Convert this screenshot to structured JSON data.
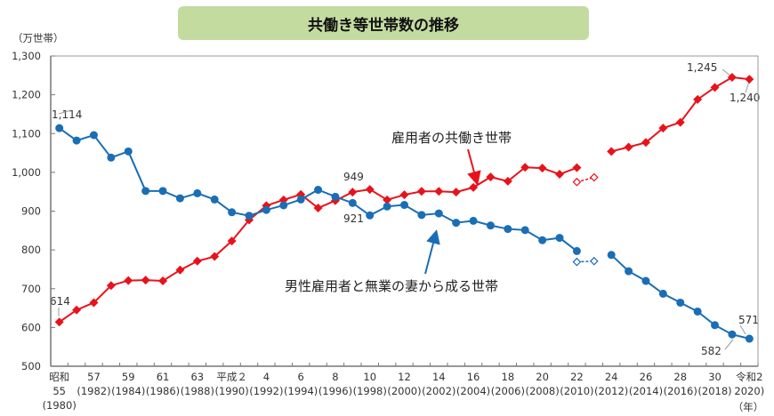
{
  "chart_data": {
    "type": "line",
    "title": "共働き等世帯数の推移",
    "ylabel": "（万世帯）",
    "xlabel": "（年）",
    "ylim": [
      500,
      1300
    ],
    "yticks": [
      "500",
      "600",
      "700",
      "800",
      "900",
      "1,000",
      "1,100",
      "1,200",
      "1,300"
    ],
    "grid": false,
    "x": [
      1980,
      1981,
      1982,
      1983,
      1984,
      1985,
      1986,
      1987,
      1988,
      1989,
      1990,
      1991,
      1992,
      1993,
      1994,
      1995,
      1996,
      1997,
      1998,
      1999,
      2000,
      2001,
      2002,
      2003,
      2004,
      2005,
      2006,
      2007,
      2008,
      2009,
      2010,
      2011,
      2012,
      2013,
      2014,
      2015,
      2016,
      2017,
      2018,
      2019,
      2020
    ],
    "xtick_labels": [
      {
        "era": "昭和",
        "year": "55",
        "west": "(1980)"
      },
      {
        "year": "57",
        "west": "(1982)"
      },
      {
        "year": "59",
        "west": "(1984)"
      },
      {
        "year": "61",
        "west": "(1986)"
      },
      {
        "year": "63",
        "west": "(1988)"
      },
      {
        "year": "平成２",
        "west": "(1990)"
      },
      {
        "year": "4",
        "west": "(1992)"
      },
      {
        "year": "6",
        "west": "(1994)"
      },
      {
        "year": "8",
        "west": "(1996)"
      },
      {
        "year": "10",
        "west": "(1998)"
      },
      {
        "year": "12",
        "west": "(2000)"
      },
      {
        "year": "14",
        "west": "(2002)"
      },
      {
        "year": "16",
        "west": "(2004)"
      },
      {
        "year": "18",
        "west": "(2006)"
      },
      {
        "year": "20",
        "west": "(2008)"
      },
      {
        "year": "22",
        "west": "(2010)"
      },
      {
        "year": "24",
        "west": "(2012)"
      },
      {
        "year": "26",
        "west": "(2014)"
      },
      {
        "year": "28",
        "west": "(2016)"
      },
      {
        "year": "30",
        "west": "(2018)"
      },
      {
        "year": "令和2",
        "west": "2020)"
      }
    ],
    "series": [
      {
        "name": "雇用者の共働き世帯",
        "color": "#e8121b",
        "marker": "diamond",
        "values": [
          614,
          645,
          664,
          708,
          721,
          722,
          720,
          748,
          771,
          783,
          823,
          877,
          914,
          929,
          943,
          908,
          927,
          949,
          956,
          929,
          942,
          951,
          951,
          949,
          961,
          988,
          977,
          1013,
          1011,
          995,
          1012,
          null,
          1054,
          1065,
          1077,
          1114,
          1129,
          1188,
          1219,
          1245,
          1240
        ],
        "dashed_points": {
          "x": [
            2010,
            2011
          ],
          "values": [
            975,
            987
          ]
        }
      },
      {
        "name": "男性雇用者と無業の妻から成る世帯",
        "color": "#1a6eb5",
        "marker": "circle",
        "values": [
          1114,
          1082,
          1096,
          1038,
          1054,
          952,
          952,
          933,
          946,
          930,
          897,
          888,
          903,
          915,
          930,
          955,
          937,
          921,
          889,
          912,
          916,
          890,
          894,
          870,
          875,
          863,
          854,
          851,
          825,
          831,
          797,
          null,
          787,
          745,
          720,
          687,
          664,
          641,
          606,
          582,
          571
        ],
        "dashed_points": {
          "x": [
            2010,
            2011
          ],
          "values": [
            769,
            771
          ]
        }
      }
    ],
    "data_labels": {
      "red_1980": "614",
      "blue_1980": "1,114",
      "red_1997": "949",
      "blue_1997": "921",
      "red_2019": "1,245",
      "red_2020": "1,240",
      "blue_2019": "582",
      "blue_2020": "571"
    }
  }
}
